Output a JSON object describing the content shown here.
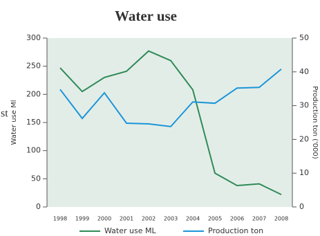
{
  "chart_data": {
    "type": "line",
    "title": "Water use",
    "annotation": "st",
    "y_label": "Water use Ml",
    "y2_label": "Production ton ('000)",
    "categories": [
      "1998",
      "1999",
      "2000",
      "2001",
      "2002",
      "2003",
      "2004",
      "2005",
      "2006",
      "2007",
      "2008"
    ],
    "series": [
      {
        "name": "Water use ML",
        "color": "#2f8a57",
        "values": [
          247,
          205,
          230,
          241,
          277,
          260,
          208,
          60,
          38,
          41,
          22
        ]
      },
      {
        "name": "Production ton",
        "color": "#1a95d8",
        "axis": "y2",
        "values": [
          34.8,
          26.2,
          33.8,
          24.8,
          24.6,
          23.8,
          31.1,
          30.7,
          35.2,
          35.4,
          40.8
        ]
      }
    ],
    "ylim": [
      0,
      300
    ],
    "yticks": [
      0,
      50,
      100,
      150,
      200,
      250,
      300
    ],
    "y2lim": [
      0,
      50
    ],
    "y2ticks": [
      0,
      10,
      20,
      30,
      40,
      50
    ],
    "background": "#e3ede8",
    "legend": "bottom"
  }
}
